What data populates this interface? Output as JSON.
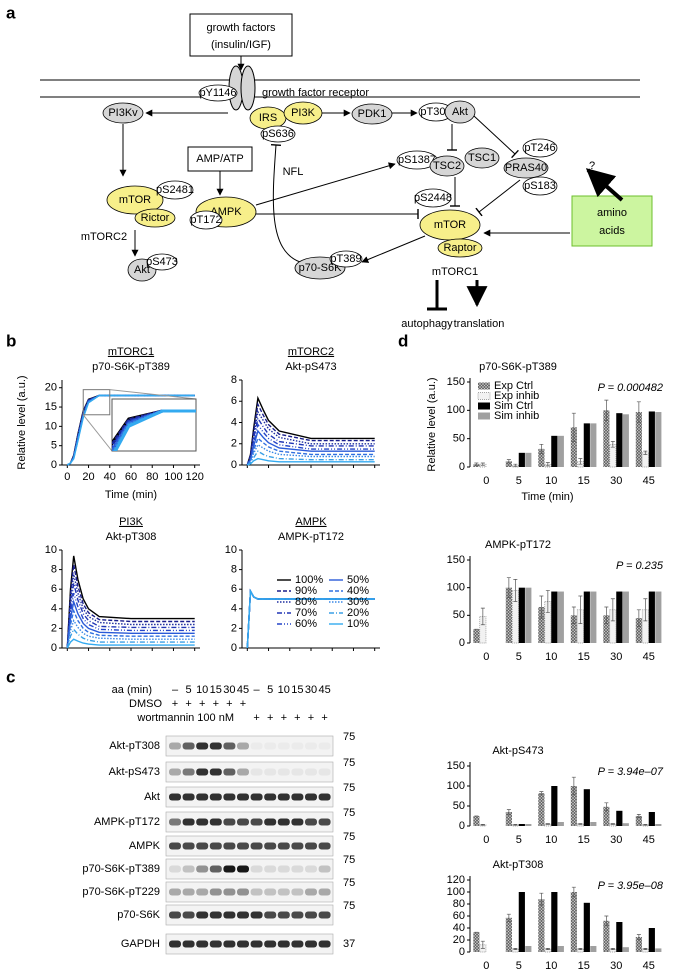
{
  "panel_a": {
    "label": "a",
    "labels": [
      "growth factors",
      "(insulin/IGF)",
      "pY1146",
      "growth factor receptor",
      "PI3Kv",
      "IRS",
      "PI3K",
      "pS636",
      "PDK1",
      "pT308",
      "Akt",
      "AMP/ATP",
      "NFL",
      "pS1387",
      "TSC2",
      "TSC1",
      "pT246",
      "PRAS40",
      "pS183",
      "?",
      "mTOR",
      "pS2481",
      "Rictor",
      "mTORC2",
      "Akt",
      "pS473",
      "AMPK",
      "pT172",
      "pS2448",
      "mTOR",
      "Raptor",
      "mTORC1",
      "p70-S6K",
      "pT389",
      "amino",
      "acids",
      "autophagy",
      "translation"
    ]
  },
  "panel_b": {
    "label": "b",
    "y_label": "Relative level (a.u.)",
    "x_label": "Time (min)",
    "x": [
      0,
      3,
      6,
      10,
      15,
      20,
      30,
      60,
      120
    ],
    "xlim": [
      -5,
      125
    ],
    "xticks": [
      0,
      20,
      40,
      60,
      80,
      100,
      120
    ],
    "legend": [
      {
        "name": "100%",
        "color": "#000000",
        "dash": "solid"
      },
      {
        "name": "90%",
        "color": "#1a1f8c",
        "dash": "dashed"
      },
      {
        "name": "80%",
        "color": "#1f2fa0",
        "dash": "dotted"
      },
      {
        "name": "70%",
        "color": "#2035b5",
        "dash": "dash-dot"
      },
      {
        "name": "60%",
        "color": "#2545c8",
        "dash": "dash-dot-dot"
      },
      {
        "name": "50%",
        "color": "#2a5ad8",
        "dash": "solid"
      },
      {
        "name": "40%",
        "color": "#3070e0",
        "dash": "dashed"
      },
      {
        "name": "30%",
        "color": "#3a88e6",
        "dash": "dotted"
      },
      {
        "name": "20%",
        "color": "#3a9fe6",
        "dash": "dash-dot"
      },
      {
        "name": "10%",
        "color": "#33aaf0",
        "dash": "solid"
      }
    ],
    "charts": [
      {
        "title": "mTORC1",
        "subtitle": "p70-S6K-pT389",
        "ylim": [
          0,
          22
        ],
        "yticks": [
          0,
          5,
          10,
          15,
          20
        ],
        "inset": true,
        "series": [
          [
            0,
            0.5,
            2.5,
            8,
            14,
            17,
            18,
            18,
            18
          ],
          [
            0,
            0.5,
            2.4,
            7.8,
            13.8,
            16.9,
            18,
            18,
            18
          ],
          [
            0,
            0.5,
            2.3,
            7.6,
            13.6,
            16.8,
            18,
            18,
            18
          ],
          [
            0,
            0.5,
            2.2,
            7.4,
            13.4,
            16.7,
            18,
            18,
            18
          ],
          [
            0,
            0.5,
            2.1,
            7.2,
            13.2,
            16.6,
            18,
            18,
            18
          ],
          [
            0,
            0.5,
            2,
            7,
            13,
            16.5,
            18,
            18,
            18
          ],
          [
            0,
            0.5,
            1.9,
            6.8,
            12.8,
            16.4,
            18,
            18,
            18
          ],
          [
            0,
            0.5,
            1.8,
            6.6,
            12.6,
            16.3,
            18,
            18,
            18
          ],
          [
            0,
            0.5,
            1.7,
            6.4,
            12.4,
            16.2,
            18,
            18,
            18
          ],
          [
            0,
            0.5,
            1.6,
            6.2,
            12.2,
            16.1,
            18,
            18,
            18
          ]
        ]
      },
      {
        "title": "mTORC2",
        "subtitle": "Akt-pS473",
        "ylim": [
          0,
          8
        ],
        "yticks": [
          0,
          2,
          4,
          6,
          8
        ],
        "series": [
          [
            0,
            1,
            3.5,
            6.3,
            5.2,
            4.2,
            3.2,
            2.5,
            2.5
          ],
          [
            0,
            0.9,
            3.2,
            5.7,
            4.7,
            3.8,
            2.9,
            2.3,
            2.3
          ],
          [
            0,
            0.8,
            2.8,
            5,
            4.2,
            3.4,
            2.6,
            2,
            2
          ],
          [
            0,
            0.7,
            2.5,
            4.4,
            3.6,
            2.9,
            2.2,
            1.8,
            1.8
          ],
          [
            0,
            0.6,
            2.1,
            3.8,
            3.1,
            2.5,
            1.9,
            1.5,
            1.5
          ],
          [
            0,
            0.5,
            1.8,
            3.2,
            2.6,
            2.1,
            1.6,
            1.3,
            1.3
          ],
          [
            0,
            0.4,
            1.4,
            2.5,
            2.1,
            1.7,
            1.3,
            1,
            1
          ],
          [
            0,
            0.3,
            1.1,
            1.9,
            1.6,
            1.3,
            1,
            0.8,
            0.8
          ],
          [
            0,
            0.2,
            0.7,
            1.3,
            1,
            0.8,
            0.6,
            0.5,
            0.5
          ],
          [
            0,
            0.1,
            0.4,
            0.6,
            0.5,
            0.4,
            0.3,
            0.3,
            0.3
          ]
        ]
      },
      {
        "title": "PI3K",
        "subtitle": "Akt-pT308",
        "ylim": [
          0,
          10
        ],
        "yticks": [
          0,
          2,
          4,
          6,
          8,
          10
        ],
        "series": [
          [
            0,
            6,
            9.4,
            7,
            5,
            4,
            3.2,
            3,
            3
          ],
          [
            0,
            5.4,
            8.5,
            6.3,
            4.5,
            3.6,
            2.9,
            2.7,
            2.7
          ],
          [
            0,
            4.8,
            7.5,
            5.6,
            4,
            3.2,
            2.6,
            2.4,
            2.4
          ],
          [
            0,
            4.2,
            6.6,
            4.9,
            3.5,
            2.8,
            2.2,
            2.1,
            2.1
          ],
          [
            0,
            3.6,
            5.6,
            4.2,
            3,
            2.4,
            1.9,
            1.8,
            1.8
          ],
          [
            0,
            3,
            4.7,
            3.5,
            2.5,
            2,
            1.6,
            1.5,
            1.5
          ],
          [
            0,
            2.4,
            3.8,
            2.8,
            2,
            1.6,
            1.3,
            1.2,
            1.2
          ],
          [
            0,
            1.8,
            2.8,
            2.1,
            1.5,
            1.2,
            1,
            0.9,
            0.9
          ],
          [
            0,
            1.2,
            1.9,
            1.4,
            1,
            0.8,
            0.6,
            0.6,
            0.6
          ],
          [
            0,
            0.6,
            0.9,
            0.7,
            0.5,
            0.4,
            0.3,
            0.3,
            0.3
          ]
        ]
      },
      {
        "title": "AMPK",
        "subtitle": "AMPK-pT172",
        "ylim": [
          0,
          10
        ],
        "yticks": [
          0,
          2,
          4,
          6,
          8,
          10
        ],
        "legend_here": true,
        "series": [
          [
            0,
            5.8,
            5.2,
            5,
            5,
            5,
            5,
            5,
            5
          ],
          [
            0,
            5.8,
            5.2,
            5,
            5,
            5,
            5,
            5,
            5
          ],
          [
            0,
            5.8,
            5.2,
            5,
            5,
            5,
            5,
            5,
            5
          ],
          [
            0,
            5.8,
            5.2,
            5,
            5,
            5,
            5,
            5,
            5
          ],
          [
            0,
            5.8,
            5.2,
            5,
            5,
            5,
            5,
            5,
            5
          ],
          [
            0,
            5.8,
            5.2,
            5,
            5,
            5,
            5,
            5,
            5
          ],
          [
            0,
            5.8,
            5.2,
            5,
            5,
            5,
            5,
            5,
            5
          ],
          [
            0,
            5.8,
            5.2,
            5,
            5,
            5,
            5,
            5,
            5
          ],
          [
            0,
            5.8,
            5.2,
            5,
            5,
            5,
            5,
            5,
            5
          ],
          [
            0,
            5.8,
            5.2,
            5,
            5,
            5,
            5,
            5,
            5
          ]
        ]
      }
    ]
  },
  "panel_c": {
    "label": "c",
    "aa_label": "aa (min)",
    "aa_values": [
      "–",
      "5",
      "10",
      "15",
      "30",
      "45",
      "–",
      "5",
      "10",
      "15",
      "30",
      "45"
    ],
    "dmso_label": "DMSO",
    "dmso_marks": [
      "+",
      "+",
      "+",
      "+",
      "+",
      "+"
    ],
    "wortmannin_label": "wortmannin 100 nM",
    "wortmannin_marks": [
      "+",
      "+",
      "+",
      "+",
      "+",
      "+"
    ],
    "rows": [
      {
        "label": "Akt-pT308",
        "mw": 75,
        "bands": [
          0.3,
          0.6,
          0.8,
          0.8,
          0.6,
          0.3,
          0.03,
          0.03,
          0.03,
          0.03,
          0.03,
          0.03
        ]
      },
      {
        "label": "Akt-pS473",
        "mw": 75,
        "bands": [
          0.3,
          0.5,
          0.8,
          0.8,
          0.6,
          0.3,
          0.05,
          0.05,
          0.05,
          0.05,
          0.05,
          0.05
        ]
      },
      {
        "label": "Akt",
        "mw": 75,
        "bands": [
          0.8,
          0.8,
          0.8,
          0.8,
          0.8,
          0.8,
          0.8,
          0.8,
          0.8,
          0.8,
          0.8,
          0.8
        ]
      },
      {
        "label": "AMPK-pT172",
        "mw": 75,
        "bands": [
          0.5,
          0.8,
          0.8,
          0.8,
          0.7,
          0.7,
          0.7,
          0.8,
          0.8,
          0.8,
          0.7,
          0.7
        ]
      },
      {
        "label": "AMPK",
        "mw": 75,
        "bands": [
          0.7,
          0.7,
          0.7,
          0.7,
          0.7,
          0.7,
          0.7,
          0.7,
          0.7,
          0.7,
          0.7,
          0.7
        ]
      },
      {
        "label": "p70-S6K-pT389",
        "mw": 75,
        "bands": [
          0.1,
          0.2,
          0.4,
          0.6,
          0.9,
          0.9,
          0.1,
          0.1,
          0.1,
          0.1,
          0.1,
          0.2
        ]
      },
      {
        "label": "p70-S6K-pT229",
        "mw": 75,
        "bands": [
          0.3,
          0.3,
          0.3,
          0.4,
          0.4,
          0.4,
          0.2,
          0.2,
          0.2,
          0.2,
          0.3,
          0.3
        ]
      },
      {
        "label": "p70-S6K",
        "mw": 75,
        "bands": [
          0.7,
          0.7,
          0.8,
          0.8,
          0.8,
          0.8,
          0.8,
          0.7,
          0.7,
          0.7,
          0.7,
          0.7
        ]
      },
      {
        "label": "GAPDH",
        "mw": 37,
        "bands": [
          0.8,
          0.8,
          0.8,
          0.8,
          0.8,
          0.8,
          0.8,
          0.8,
          0.8,
          0.8,
          0.8,
          0.8
        ]
      }
    ]
  },
  "panel_d": {
    "label": "d",
    "y_label": "Relative level (a.u.)",
    "x_label": "Time (min)",
    "categories": [
      "0",
      "5",
      "10",
      "15",
      "30",
      "45"
    ],
    "series": [
      {
        "name": "Exp Ctrl",
        "color": "#6b6b6b",
        "fill": "hatched"
      },
      {
        "name": "Exp inhib",
        "color": "#f2f2f2",
        "fill": "dotted-outline"
      },
      {
        "name": "Sim Ctrl",
        "color": "#000000",
        "fill": "solid"
      },
      {
        "name": "Sim inhib",
        "color": "#a0a0a0",
        "fill": "solid"
      }
    ],
    "charts": [
      {
        "title": "p70-S6K-pT389",
        "p_value": "P = 0.000482",
        "ylim": [
          0,
          150
        ],
        "yticks": [
          0,
          50,
          100,
          150
        ],
        "legend_here": true,
        "values": [
          [
            5,
            10,
            32,
            70,
            100,
            97
          ],
          [
            5,
            3,
            5,
            10,
            40,
            25
          ],
          [
            null,
            25,
            55,
            77,
            95,
            98
          ],
          [
            null,
            25,
            55,
            77,
            93,
            97
          ]
        ],
        "errors": [
          [
            2,
            3,
            8,
            25,
            18,
            18
          ],
          [
            2,
            2,
            3,
            5,
            5,
            3
          ]
        ]
      },
      {
        "title": "AMPK-pT172",
        "p_value": "P = 0.235",
        "ylim": [
          0,
          150
        ],
        "yticks": [
          0,
          50,
          100,
          150
        ],
        "values": [
          [
            25,
            100,
            65,
            50,
            50,
            45
          ],
          [
            48,
            95,
            75,
            60,
            60,
            60
          ],
          [
            null,
            100,
            93,
            93,
            93,
            93
          ],
          [
            null,
            100,
            93,
            93,
            93,
            93
          ]
        ],
        "errors": [
          [
            0,
            18,
            20,
            15,
            15,
            15
          ],
          [
            15,
            20,
            20,
            25,
            20,
            20
          ]
        ]
      },
      {
        "title": "Akt-pS473",
        "p_value": "P = 3.94e–07",
        "ylim": [
          0,
          150
        ],
        "yticks": [
          0,
          50,
          100,
          150
        ],
        "values": [
          [
            25,
            35,
            82,
            100,
            48,
            25
          ],
          [
            3,
            3,
            5,
            5,
            5,
            3
          ],
          [
            null,
            5,
            100,
            92,
            38,
            35
          ],
          [
            null,
            5,
            10,
            10,
            7,
            5
          ]
        ],
        "errors": [
          [
            0,
            6,
            4,
            22,
            10,
            4
          ],
          [
            1,
            1,
            1,
            1,
            1,
            1
          ]
        ]
      },
      {
        "title": "Akt-pT308",
        "p_value": "P = 3.95e–08",
        "ylim": [
          0,
          120
        ],
        "yticks": [
          0,
          20,
          40,
          60,
          80,
          100,
          120
        ],
        "values": [
          [
            33,
            57,
            88,
            100,
            52,
            25
          ],
          [
            12,
            5,
            5,
            5,
            5,
            5
          ],
          [
            null,
            100,
            100,
            82,
            50,
            40
          ],
          [
            null,
            10,
            10,
            10,
            8,
            6
          ]
        ],
        "errors": [
          [
            0,
            6,
            10,
            8,
            8,
            4
          ],
          [
            6,
            1,
            1,
            1,
            1,
            1
          ]
        ]
      }
    ]
  }
}
